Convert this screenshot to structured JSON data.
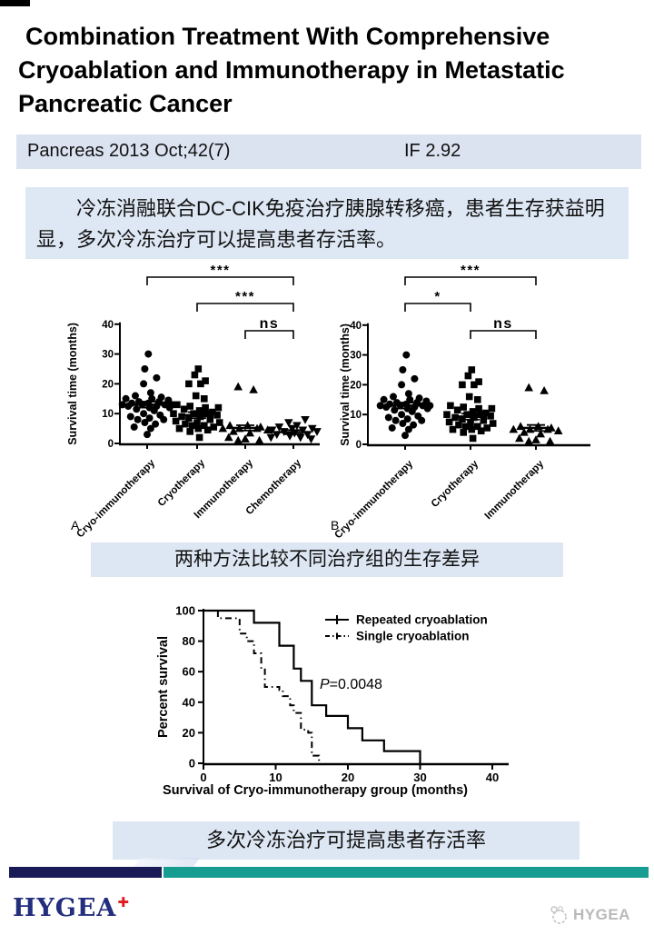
{
  "title_lines": [
    "Combination Treatment With Comprehensive",
    "Cryoablation and Immunotherapy in Metastatic",
    "Pancreatic Cancer"
  ],
  "journal_bar": {
    "citation": "Pancreas 2013 Oct;42(7)",
    "impact_factor": "IF 2.92"
  },
  "summary_box": {
    "text": "冷冻消融联合DC-CIK免疫治疗胰腺转移癌，患者生存获益明显，多次冷冻治疗可以提高患者存活率。"
  },
  "caption_scatter": "两种方法比较不同治疗组的生存差异",
  "caption_km": "多次冷冻治疗可提高患者存活率",
  "footer": {
    "logo_text": "HYGEA",
    "logo_cross": "✚",
    "watermark_text": "HYGEA"
  },
  "colors": {
    "journal_bar": "#dbe3f1",
    "caption_box": "#dde7f3",
    "footer_navy": "#191a56",
    "footer_teal": "#169c90",
    "logo_blue": "#232e7d",
    "cross_red": "#e01b22",
    "plot_ink": "#000000"
  },
  "chart_data": [
    {
      "type": "scatter",
      "panel_label": "A",
      "ylabel": "Survival time (months)",
      "ylim": [
        0,
        40
      ],
      "yticks": [
        0,
        10,
        20,
        30,
        40
      ],
      "groups": [
        {
          "label": "Cryo-immunotherapy",
          "marker": "circle",
          "median": 13,
          "sem": 1.0,
          "points": [
            [
              0.05,
              30
            ],
            [
              -0.1,
              25
            ],
            [
              0.4,
              22
            ],
            [
              -0.15,
              20
            ],
            [
              0.15,
              17
            ],
            [
              -0.5,
              16
            ],
            [
              0.6,
              15.5
            ],
            [
              -0.9,
              15
            ],
            [
              0.2,
              15
            ],
            [
              0.9,
              14.5
            ],
            [
              -0.35,
              14
            ],
            [
              0.5,
              14
            ],
            [
              -0.65,
              13.5
            ],
            [
              0.05,
              13.5
            ],
            [
              -1.05,
              13
            ],
            [
              0.75,
              13
            ],
            [
              -0.2,
              13
            ],
            [
              1.05,
              13
            ],
            [
              0.4,
              12.5
            ],
            [
              -0.8,
              12.5
            ],
            [
              0.1,
              12
            ],
            [
              0.95,
              12
            ],
            [
              -0.45,
              11.5
            ],
            [
              0.3,
              11
            ],
            [
              -0.15,
              10
            ],
            [
              0.55,
              9.5
            ],
            [
              -0.7,
              9
            ],
            [
              0.1,
              8.5
            ],
            [
              -0.4,
              8
            ],
            [
              0.7,
              8
            ],
            [
              -0.1,
              7
            ],
            [
              0.35,
              6.5
            ],
            [
              -0.55,
              5.5
            ],
            [
              0.15,
              5
            ],
            [
              0,
              3
            ]
          ]
        },
        {
          "label": "Cryotherapy",
          "marker": "square",
          "median": 9.5,
          "sem": 1.0,
          "points": [
            [
              0.05,
              25
            ],
            [
              -0.1,
              23
            ],
            [
              0.35,
              21
            ],
            [
              -0.35,
              20
            ],
            [
              0.15,
              20
            ],
            [
              -0.05,
              16
            ],
            [
              0.3,
              15
            ],
            [
              -0.85,
              13
            ],
            [
              -0.3,
              12.5
            ],
            [
              0.35,
              12
            ],
            [
              0.9,
              12
            ],
            [
              -0.55,
              11.5
            ],
            [
              0.1,
              11
            ],
            [
              0.65,
              10.5
            ],
            [
              -1,
              10
            ],
            [
              -0.15,
              10
            ],
            [
              0.4,
              10
            ],
            [
              0.85,
              9.5
            ],
            [
              -0.65,
              9
            ],
            [
              0.15,
              9
            ],
            [
              -0.35,
              8.5
            ],
            [
              0.55,
              8
            ],
            [
              -0.9,
              7.5
            ],
            [
              0,
              7
            ],
            [
              0.95,
              7
            ],
            [
              -0.5,
              6.5
            ],
            [
              0.3,
              6
            ],
            [
              -0.2,
              6
            ],
            [
              0.7,
              5.5
            ],
            [
              -0.75,
              5
            ],
            [
              0.05,
              5
            ],
            [
              0.45,
              4.5
            ],
            [
              -0.3,
              4
            ],
            [
              0.1,
              2
            ]
          ]
        },
        {
          "label": "Immunotherapy",
          "marker": "triangle",
          "median": 5.2,
          "sem": 0.9,
          "points": [
            [
              -0.3,
              19
            ],
            [
              0.35,
              18
            ],
            [
              -0.65,
              6
            ],
            [
              0.1,
              6
            ],
            [
              0.65,
              5.5
            ],
            [
              -0.95,
              5
            ],
            [
              -0.25,
              5
            ],
            [
              0.5,
              5
            ],
            [
              0.95,
              4.5
            ],
            [
              -0.5,
              4
            ],
            [
              0.2,
              3.5
            ],
            [
              -0.7,
              2
            ],
            [
              0,
              1.5
            ],
            [
              -0.3,
              1
            ],
            [
              0.6,
              1
            ]
          ]
        },
        {
          "label": "Chemotherapy",
          "marker": "triangle-down",
          "median": 3.8,
          "sem": 0.7,
          "points": [
            [
              0.5,
              8
            ],
            [
              -0.2,
              7
            ],
            [
              0.15,
              6
            ],
            [
              -0.6,
              5.5
            ],
            [
              0.8,
              5
            ],
            [
              -0.05,
              5
            ],
            [
              -0.9,
              4.5
            ],
            [
              0.4,
              4.5
            ],
            [
              -0.4,
              4
            ],
            [
              1,
              4
            ],
            [
              0.05,
              3.5
            ],
            [
              -0.7,
              3
            ],
            [
              0.6,
              3
            ],
            [
              -0.15,
              2.5
            ],
            [
              -0.95,
              2
            ],
            [
              0.3,
              2
            ],
            [
              0.75,
              1.5
            ]
          ]
        }
      ],
      "brackets": [
        {
          "from": 0,
          "to": 3,
          "label": "***"
        },
        {
          "from": 1,
          "to": 3,
          "label": "***"
        },
        {
          "from": 2,
          "to": 3,
          "label": "ns"
        }
      ]
    },
    {
      "type": "scatter",
      "panel_label": "B",
      "ylabel": "Survival time (months)",
      "ylim": [
        0,
        40
      ],
      "yticks": [
        0,
        10,
        20,
        30,
        40
      ],
      "groups": [
        {
          "label": "Cryo-immunotherapy",
          "marker": "circle",
          "median": 13,
          "sem": 1.0,
          "points": [
            [
              0.05,
              30
            ],
            [
              -0.1,
              25
            ],
            [
              0.4,
              22
            ],
            [
              -0.15,
              20
            ],
            [
              0.15,
              17
            ],
            [
              -0.5,
              16
            ],
            [
              0.6,
              15.5
            ],
            [
              -0.9,
              15
            ],
            [
              0.2,
              15
            ],
            [
              0.9,
              14.5
            ],
            [
              -0.35,
              14
            ],
            [
              0.5,
              14
            ],
            [
              -0.65,
              13.5
            ],
            [
              0.05,
              13.5
            ],
            [
              -1.05,
              13
            ],
            [
              0.75,
              13
            ],
            [
              -0.2,
              13
            ],
            [
              1.05,
              13
            ],
            [
              0.4,
              12.5
            ],
            [
              -0.8,
              12.5
            ],
            [
              0.1,
              12
            ],
            [
              0.95,
              12
            ],
            [
              -0.45,
              11.5
            ],
            [
              0.3,
              11
            ],
            [
              -0.15,
              10
            ],
            [
              0.55,
              9.5
            ],
            [
              -0.7,
              9
            ],
            [
              0.1,
              8.5
            ],
            [
              -0.4,
              8
            ],
            [
              0.7,
              8
            ],
            [
              -0.1,
              7
            ],
            [
              0.35,
              6.5
            ],
            [
              -0.55,
              5.5
            ],
            [
              0.15,
              5
            ],
            [
              0,
              3
            ]
          ]
        },
        {
          "label": "Cryotherapy",
          "marker": "square",
          "median": 9.3,
          "sem": 1.0,
          "points": [
            [
              0.05,
              25
            ],
            [
              -0.1,
              23
            ],
            [
              0.35,
              21
            ],
            [
              -0.35,
              20
            ],
            [
              0.15,
              20
            ],
            [
              -0.05,
              16
            ],
            [
              0.3,
              15
            ],
            [
              -0.85,
              13
            ],
            [
              -0.3,
              12.5
            ],
            [
              0.35,
              12
            ],
            [
              0.9,
              12
            ],
            [
              -0.55,
              11.5
            ],
            [
              0.1,
              11
            ],
            [
              0.65,
              10.5
            ],
            [
              -1,
              10
            ],
            [
              -0.15,
              10
            ],
            [
              0.4,
              10
            ],
            [
              0.85,
              9.5
            ],
            [
              -0.65,
              9
            ],
            [
              0.15,
              9
            ],
            [
              -0.35,
              8.5
            ],
            [
              0.55,
              8
            ],
            [
              -0.9,
              7.5
            ],
            [
              0,
              7
            ],
            [
              0.95,
              7
            ],
            [
              -0.5,
              6.5
            ],
            [
              0.3,
              6
            ],
            [
              -0.2,
              6
            ],
            [
              0.7,
              5.5
            ],
            [
              -0.75,
              5
            ],
            [
              0.05,
              5
            ],
            [
              0.45,
              4.5
            ],
            [
              -0.3,
              4
            ],
            [
              0.1,
              2
            ]
          ]
        },
        {
          "label": "Immunotherapy",
          "marker": "triangle",
          "median": 5.5,
          "sem": 1.0,
          "points": [
            [
              -0.3,
              19
            ],
            [
              0.35,
              18
            ],
            [
              -0.65,
              6
            ],
            [
              0.1,
              6
            ],
            [
              0.65,
              5.5
            ],
            [
              -0.95,
              5
            ],
            [
              -0.25,
              5
            ],
            [
              0.5,
              5
            ],
            [
              0.95,
              4.5
            ],
            [
              -0.5,
              4
            ],
            [
              0.2,
              3.5
            ],
            [
              -0.7,
              2
            ],
            [
              0,
              1.5
            ],
            [
              -0.3,
              1
            ],
            [
              0.6,
              1
            ]
          ]
        }
      ],
      "brackets": [
        {
          "from": 0,
          "to": 2,
          "label": "***"
        },
        {
          "from": 0,
          "to": 1,
          "label": "*"
        },
        {
          "from": 1,
          "to": 2,
          "label": "ns"
        }
      ]
    },
    {
      "type": "line",
      "xlabel": "Survival of Cryo-immunotherapy group (months)",
      "ylabel": "Percent survival",
      "xlim": [
        0,
        40
      ],
      "ylim": [
        0,
        100
      ],
      "xticks": [
        0,
        10,
        20,
        30,
        40
      ],
      "yticks": [
        0,
        20,
        40,
        60,
        80,
        100
      ],
      "annotation": "P=0.0048",
      "legend_position": "top-right",
      "series": [
        {
          "name": "Repeated cryoablation",
          "style": "solid",
          "points": [
            [
              0,
              100
            ],
            [
              7,
              100
            ],
            [
              7,
              92
            ],
            [
              10.5,
              92
            ],
            [
              10.5,
              77
            ],
            [
              12.5,
              77
            ],
            [
              12.5,
              62
            ],
            [
              13.5,
              62
            ],
            [
              13.5,
              54
            ],
            [
              15,
              54
            ],
            [
              15,
              38
            ],
            [
              17,
              38
            ],
            [
              17,
              31
            ],
            [
              20,
              31
            ],
            [
              20,
              23
            ],
            [
              22,
              23
            ],
            [
              22,
              15
            ],
            [
              25,
              15
            ],
            [
              25,
              8
            ],
            [
              30,
              8
            ],
            [
              30,
              0
            ]
          ]
        },
        {
          "name": "Single cryoablation",
          "style": "dashdot",
          "points": [
            [
              2,
              100
            ],
            [
              2,
              95
            ],
            [
              5,
              95
            ],
            [
              5,
              85
            ],
            [
              6,
              85
            ],
            [
              6,
              80
            ],
            [
              7,
              80
            ],
            [
              7,
              72
            ],
            [
              8,
              72
            ],
            [
              8,
              62
            ],
            [
              8.5,
              62
            ],
            [
              8.5,
              50
            ],
            [
              10.5,
              50
            ],
            [
              10.5,
              48
            ],
            [
              11,
              48
            ],
            [
              11,
              44
            ],
            [
              12,
              44
            ],
            [
              12,
              38
            ],
            [
              12.5,
              38
            ],
            [
              12.5,
              33
            ],
            [
              13.5,
              33
            ],
            [
              13.5,
              22
            ],
            [
              14.5,
              22
            ],
            [
              14.5,
              20
            ],
            [
              15,
              20
            ],
            [
              15,
              5
            ],
            [
              16,
              5
            ],
            [
              16,
              0
            ]
          ]
        }
      ]
    }
  ]
}
